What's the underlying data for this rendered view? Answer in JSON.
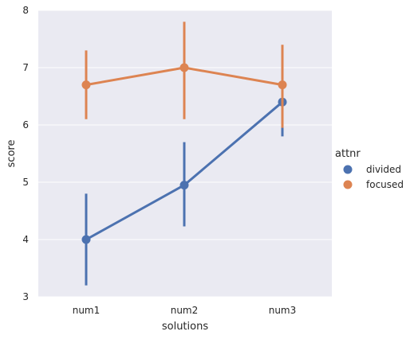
{
  "chart_data": {
    "type": "line",
    "xlabel": "solutions",
    "ylabel": "score",
    "categories": [
      "num1",
      "num2",
      "num3"
    ],
    "ylim": [
      3,
      8
    ],
    "yticks": [
      "3",
      "4",
      "5",
      "6",
      "7",
      "8"
    ],
    "grid": true,
    "legend": {
      "title": "attnr",
      "position": "right"
    },
    "series": [
      {
        "name": "divided",
        "color": "#4c72b0",
        "values": [
          4.0,
          4.95,
          6.4
        ],
        "ci_low": [
          3.2,
          4.23,
          5.8
        ],
        "ci_high": [
          4.8,
          5.7,
          6.4
        ]
      },
      {
        "name": "focused",
        "color": "#dd8452",
        "values": [
          6.7,
          7.0,
          6.7
        ],
        "ci_low": [
          6.1,
          6.1,
          5.95
        ],
        "ci_high": [
          7.3,
          7.8,
          7.4
        ]
      }
    ]
  }
}
